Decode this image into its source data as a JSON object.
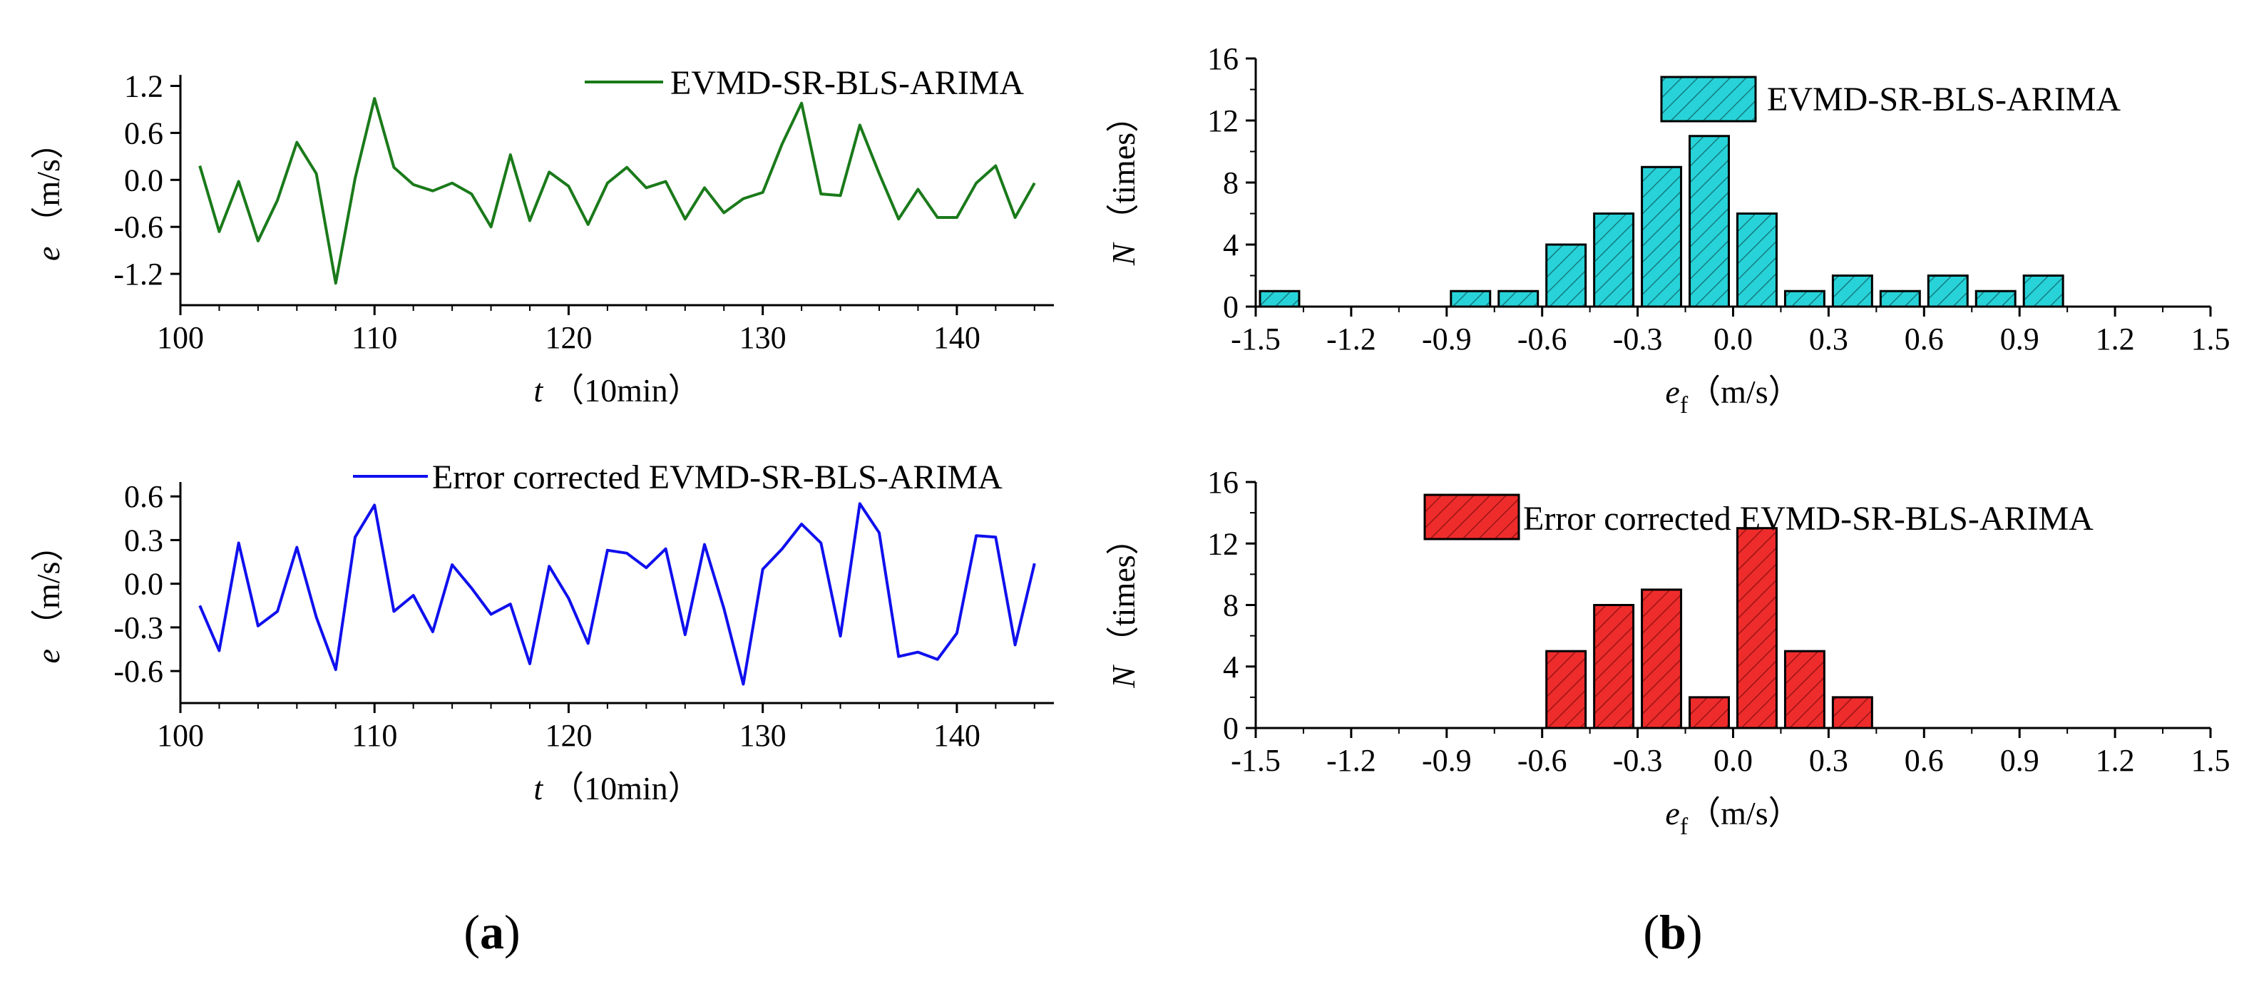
{
  "panel_labels": {
    "a": "a",
    "b": "b"
  },
  "colors": {
    "green_line": "#1a7a1a",
    "blue_line": "#1010ee",
    "cyan_fill": "#27d3d8",
    "cyan_hatch": "#157b80",
    "red_fill": "#ee2c2c",
    "red_hatch": "#9a1414",
    "axis": "#000000"
  },
  "chart_data": [
    {
      "id": "a-top",
      "type": "line",
      "xlabel_var": "t",
      "xlabel_unit": "（10min）",
      "ylabel_var": "e",
      "ylabel_unit": "（m/s）",
      "xlim": [
        100,
        145
      ],
      "ylim": [
        -1.6,
        1.25
      ],
      "xticks": [
        100,
        110,
        120,
        130,
        140
      ],
      "xtick_labels": [
        "100",
        "110",
        "120",
        "130",
        "140"
      ],
      "yticks": [
        1.2,
        0.6,
        0.0,
        -0.6,
        -1.2
      ],
      "ytick_labels": [
        "1.2",
        "0.6",
        "0.0",
        "-0.6",
        "-1.2"
      ],
      "legend_position": "top-right",
      "series": [
        {
          "name": "EVMD-SR-BLS-ARIMA",
          "color": "#1a7a1a",
          "x": [
            101,
            102,
            103,
            104,
            105,
            106,
            107,
            108,
            109,
            110,
            111,
            112,
            113,
            114,
            115,
            116,
            117,
            118,
            119,
            120,
            121,
            122,
            123,
            124,
            125,
            126,
            127,
            128,
            129,
            130,
            131,
            132,
            133,
            134,
            135,
            136,
            137,
            138,
            139,
            140,
            141,
            142,
            143,
            144
          ],
          "y": [
            0.18,
            -0.66,
            -0.02,
            -0.78,
            -0.26,
            0.48,
            0.08,
            -1.32,
            0.02,
            1.04,
            0.16,
            -0.06,
            -0.14,
            -0.04,
            -0.18,
            -0.6,
            0.32,
            -0.52,
            0.1,
            -0.08,
            -0.57,
            -0.04,
            0.16,
            -0.1,
            -0.02,
            -0.5,
            -0.1,
            -0.42,
            -0.24,
            -0.16,
            0.46,
            0.98,
            -0.18,
            -0.2,
            0.7,
            0.08,
            -0.5,
            -0.12,
            -0.48,
            -0.48,
            -0.04,
            0.18,
            -0.48,
            -0.04
          ]
        }
      ]
    },
    {
      "id": "a-bottom",
      "type": "line",
      "xlabel_var": "t",
      "xlabel_unit": "（10min）",
      "ylabel_var": "e",
      "ylabel_unit": "（m/s）",
      "xlim": [
        100,
        145
      ],
      "ylim": [
        -0.82,
        0.65
      ],
      "xticks": [
        100,
        110,
        120,
        130,
        140
      ],
      "xtick_labels": [
        "100",
        "110",
        "120",
        "130",
        "140"
      ],
      "yticks": [
        0.6,
        0.3,
        0.0,
        -0.3,
        -0.6
      ],
      "ytick_labels": [
        "0.6",
        "0.3",
        "0.0",
        "-0.3",
        "-0.6"
      ],
      "legend_position": "top-right",
      "series": [
        {
          "name": "Error corrected EVMD-SR-BLS-ARIMA",
          "color": "#1010ee",
          "x": [
            101,
            102,
            103,
            104,
            105,
            106,
            107,
            108,
            109,
            110,
            111,
            112,
            113,
            114,
            115,
            116,
            117,
            118,
            119,
            120,
            121,
            122,
            123,
            124,
            125,
            126,
            127,
            128,
            129,
            130,
            131,
            132,
            133,
            134,
            135,
            136,
            137,
            138,
            139,
            140,
            141,
            142,
            143,
            144
          ],
          "y": [
            -0.15,
            -0.46,
            0.28,
            -0.29,
            -0.19,
            0.25,
            -0.23,
            -0.59,
            0.32,
            0.54,
            -0.19,
            -0.08,
            -0.33,
            0.13,
            -0.03,
            -0.21,
            -0.14,
            -0.55,
            0.12,
            -0.1,
            -0.41,
            0.23,
            0.21,
            0.11,
            0.24,
            -0.35,
            0.27,
            -0.17,
            -0.69,
            0.1,
            0.24,
            0.41,
            0.28,
            -0.36,
            0.55,
            0.35,
            -0.5,
            -0.47,
            -0.52,
            -0.34,
            0.33,
            0.32,
            -0.42,
            0.14
          ]
        }
      ]
    },
    {
      "id": "b-top",
      "type": "bar",
      "xlabel_var": "e",
      "xlabel_sub": "f",
      "xlabel_unit": "（m/s）",
      "ylabel_var": "N",
      "ylabel_unit": "（times）",
      "xlim": [
        -1.5,
        1.5
      ],
      "ylim": [
        0,
        16
      ],
      "xticks": [
        -1.5,
        -1.2,
        -0.9,
        -0.6,
        -0.3,
        0.0,
        0.3,
        0.6,
        0.9,
        1.2,
        1.5
      ],
      "xtick_labels": [
        "-1.5",
        "-1.2",
        "-0.9",
        "-0.6",
        "-0.3",
        "0.0",
        "0.3",
        "0.6",
        "0.9",
        "1.2",
        "1.5"
      ],
      "yticks": [
        0,
        4,
        8,
        12,
        16
      ],
      "ytick_labels": [
        "0",
        "4",
        "8",
        "12",
        "16"
      ],
      "bin_width": 0.15,
      "legend_position": "top-right",
      "series": [
        {
          "name": "EVMD-SR-BLS-ARIMA",
          "color": "#27d3d8",
          "bin_centers": [
            -1.425,
            -0.825,
            -0.675,
            -0.525,
            -0.375,
            -0.225,
            -0.075,
            0.075,
            0.225,
            0.375,
            0.525,
            0.675,
            0.825,
            0.975
          ],
          "values": [
            1,
            1,
            1,
            4,
            6,
            9,
            11,
            6,
            1,
            2,
            1,
            2,
            1,
            2
          ]
        }
      ]
    },
    {
      "id": "b-bottom",
      "type": "bar",
      "xlabel_var": "e",
      "xlabel_sub": "f",
      "xlabel_unit": "（m/s）",
      "ylabel_var": "N",
      "ylabel_unit": "（times）",
      "xlim": [
        -1.5,
        1.5
      ],
      "ylim": [
        0,
        16
      ],
      "xticks": [
        -1.5,
        -1.2,
        -0.9,
        -0.6,
        -0.3,
        0.0,
        0.3,
        0.6,
        0.9,
        1.2,
        1.5
      ],
      "xtick_labels": [
        "-1.5",
        "-1.2",
        "-0.9",
        "-0.6",
        "-0.3",
        "0.0",
        "0.3",
        "0.6",
        "0.9",
        "1.2",
        "1.5"
      ],
      "yticks": [
        0,
        4,
        8,
        12,
        16
      ],
      "ytick_labels": [
        "0",
        "4",
        "8",
        "12",
        "16"
      ],
      "bin_width": 0.15,
      "legend_position": "top-right",
      "series": [
        {
          "name": "Error corrected EVMD-SR-BLS-ARIMA",
          "color": "#ee2c2c",
          "bin_centers": [
            -0.525,
            -0.375,
            -0.225,
            -0.075,
            0.075,
            0.225,
            0.375
          ],
          "values": [
            5,
            8,
            9,
            2,
            13,
            5,
            2
          ]
        }
      ]
    }
  ]
}
